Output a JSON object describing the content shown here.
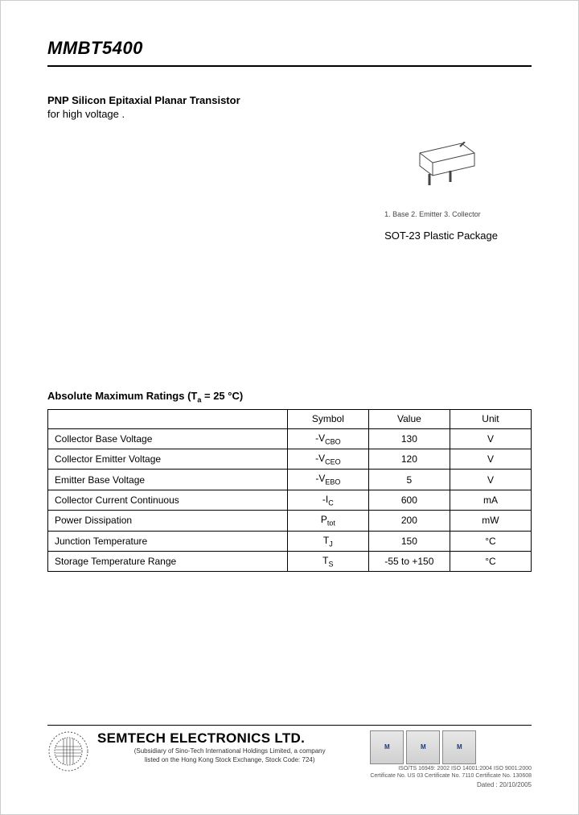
{
  "header": {
    "part_number": "MMBT5400"
  },
  "description": {
    "title": "PNP Silicon Epitaxial Planar Transistor",
    "subtitle": "for high voltage ."
  },
  "package": {
    "pin_labels": "1. Base   2. Emitter   3. Collector",
    "name": "SOT-23 Plastic Package"
  },
  "ratings": {
    "title_prefix": "Absolute Maximum Ratings (T",
    "title_sub": "a",
    "title_suffix": " = 25 °C)",
    "columns": [
      "",
      "Symbol",
      "Value",
      "Unit"
    ],
    "rows": [
      {
        "param": "Collector Base Voltage",
        "sym_prefix": "-V",
        "sym_sub": "CBO",
        "value": "130",
        "unit": "V"
      },
      {
        "param": "Collector Emitter Voltage",
        "sym_prefix": "-V",
        "sym_sub": "CEO",
        "value": "120",
        "unit": "V"
      },
      {
        "param": "Emitter Base Voltage",
        "sym_prefix": "-V",
        "sym_sub": "EBO",
        "value": "5",
        "unit": "V"
      },
      {
        "param": "Collector Current Continuous",
        "sym_prefix": "-I",
        "sym_sub": "C",
        "value": "600",
        "unit": "mA"
      },
      {
        "param": "Power Dissipation",
        "sym_prefix": "P",
        "sym_sub": "tot",
        "value": "200",
        "unit": "mW"
      },
      {
        "param": "Junction Temperature",
        "sym_prefix": "T",
        "sym_sub": "J",
        "value": "150",
        "unit": "°C"
      },
      {
        "param": "Storage Temperature Range",
        "sym_prefix": "T",
        "sym_sub": "S",
        "value": "-55 to +150",
        "unit": "°C"
      }
    ]
  },
  "footer": {
    "company": "SEMTECH ELECTRONICS LTD.",
    "sub1": "(Subsidiary of Sino-Tech International Holdings Limited, a company",
    "sub2": "listed on the Hong Kong Stock Exchange, Stock Code: 724)",
    "cert_line": "ISO/TS 16949: 2002   ISO 14001:2004   ISO 9001:2000",
    "cert_line2": "Certificate No. US 03   Certificate No. 7110   Certificate No. 130608",
    "dated": "Dated : 20/10/2005",
    "badges": [
      "M",
      "M",
      "M"
    ]
  },
  "colors": {
    "text": "#000000",
    "border": "#000000",
    "badge_bg": "#d8d8d8",
    "badge_text": "#1a3a7a"
  }
}
